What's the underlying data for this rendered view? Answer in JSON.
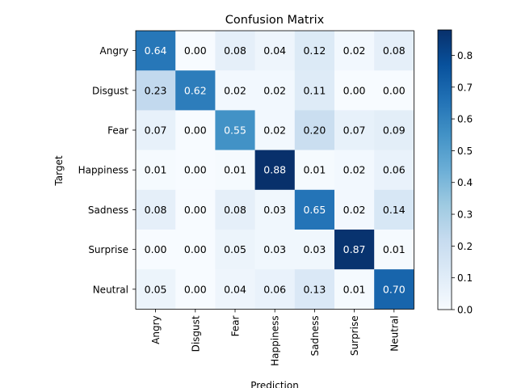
{
  "chart_data": {
    "type": "heatmap",
    "title": "Confusion Matrix",
    "xlabel": "Prediction",
    "ylabel": "Target",
    "x_categories": [
      "Angry",
      "Disgust",
      "Fear",
      "Happiness",
      "Sadness",
      "Surprise",
      "Neutral"
    ],
    "y_categories": [
      "Angry",
      "Disgust",
      "Fear",
      "Happiness",
      "Sadness",
      "Surprise",
      "Neutral"
    ],
    "values": [
      [
        0.64,
        0.0,
        0.08,
        0.04,
        0.12,
        0.02,
        0.08
      ],
      [
        0.23,
        0.62,
        0.02,
        0.02,
        0.11,
        0.0,
        0.0
      ],
      [
        0.07,
        0.0,
        0.55,
        0.02,
        0.2,
        0.07,
        0.09
      ],
      [
        0.01,
        0.0,
        0.01,
        0.88,
        0.01,
        0.02,
        0.06
      ],
      [
        0.08,
        0.0,
        0.08,
        0.03,
        0.65,
        0.02,
        0.14
      ],
      [
        0.0,
        0.0,
        0.05,
        0.03,
        0.03,
        0.87,
        0.01
      ],
      [
        0.05,
        0.0,
        0.04,
        0.06,
        0.13,
        0.01,
        0.7
      ]
    ],
    "value_format": "0.00",
    "colormap": "Blues",
    "color_range": [
      0.0,
      0.88
    ],
    "colorbar_ticks": [
      "0.0",
      "0.1",
      "0.2",
      "0.3",
      "0.4",
      "0.5",
      "0.6",
      "0.7",
      "0.8"
    ],
    "text_color_light": "#ffffff",
    "text_color_dark": "#000000",
    "text_threshold": 0.44,
    "x_tick_rotation": "vertical"
  }
}
